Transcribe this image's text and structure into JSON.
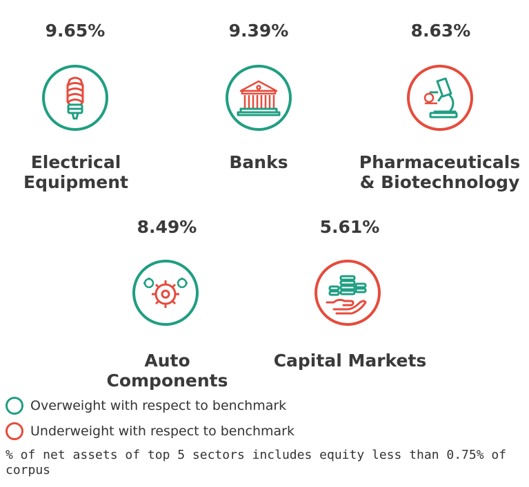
{
  "sectors": [
    {
      "percent": "9.65%",
      "label_line1": "Electrical",
      "label_line2": "Equipment",
      "icon": "light-bulb-icon",
      "status": "overweight"
    },
    {
      "percent": "9.39%",
      "label_line1": "Banks",
      "label_line2": "",
      "icon": "bank-building-icon",
      "status": "overweight"
    },
    {
      "percent": "8.63%",
      "label_line1": "Pharmaceuticals",
      "label_line2": "& Biotechnology",
      "icon": "microscope-icon",
      "status": "underweight"
    },
    {
      "percent": "8.49%",
      "label_line1": "Auto",
      "label_line2": "Components",
      "icon": "gears-icon",
      "status": "overweight"
    },
    {
      "percent": "5.61%",
      "label_line1": "Capital Markets",
      "label_line2": "",
      "icon": "hand-coins-icon",
      "status": "underweight"
    }
  ],
  "legend": {
    "overweight": "Overweight with respect to benchmark",
    "underweight": "Underweight with respect to benchmark"
  },
  "note": "% of net assets of top 5 sectors includes equity less than 0.75% of corpus",
  "colors": {
    "overweight": "#1f9e82",
    "underweight": "#e64b3c",
    "text": "#3a3a3a"
  }
}
